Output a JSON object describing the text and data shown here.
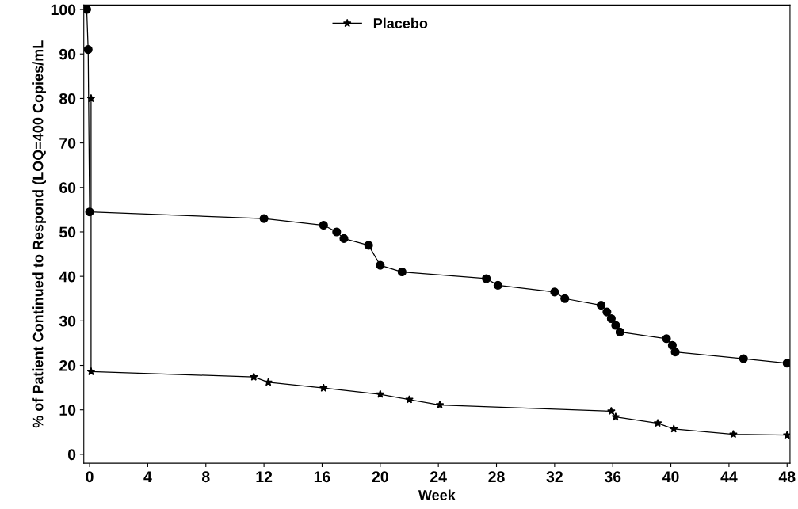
{
  "chart_data": {
    "type": "line",
    "xlabel": "Week",
    "ylabel": "% of Patient Continued to Respond (LOQ=400 Copies/mL",
    "xlim": [
      -0.4,
      48.2
    ],
    "ylim": [
      -2,
      101
    ],
    "xticks": [
      0,
      4,
      8,
      12,
      16,
      20,
      24,
      28,
      32,
      36,
      40,
      44,
      48
    ],
    "yticks": [
      0,
      10,
      20,
      30,
      40,
      50,
      60,
      70,
      80,
      90,
      100
    ],
    "grid": false,
    "legend": "top",
    "line_style": "solid",
    "series": [
      {
        "name": "Placebo",
        "color": "#000000",
        "marker": "star",
        "x": [
          0.1,
          0.1,
          11.3,
          12.3,
          16.1,
          20,
          22,
          24.1,
          35.9,
          36.2,
          39.1,
          40.2,
          44.3,
          48
        ],
        "values": [
          80,
          18.6,
          17.4,
          16.2,
          14.9,
          13.5,
          12.3,
          11.1,
          9.7,
          8.4,
          7,
          5.7,
          4.5,
          4.3
        ]
      },
      {
        "color": "#000000",
        "marker": "circle",
        "x": [
          -0.2,
          -0.1,
          0,
          12,
          16.1,
          17,
          17.5,
          19.2,
          20,
          21.5,
          27.3,
          28.1,
          32,
          32.7,
          35.2,
          35.6,
          35.9,
          36.2,
          36.5,
          39.7,
          40.1,
          40.3,
          45,
          48
        ],
        "values": [
          100,
          91,
          54.5,
          53,
          51.5,
          50,
          48.5,
          47,
          42.5,
          41,
          39.5,
          38,
          36.5,
          35,
          33.5,
          32,
          30.5,
          29,
          27.5,
          26,
          24.5,
          23,
          21.5,
          20.5
        ]
      }
    ]
  }
}
